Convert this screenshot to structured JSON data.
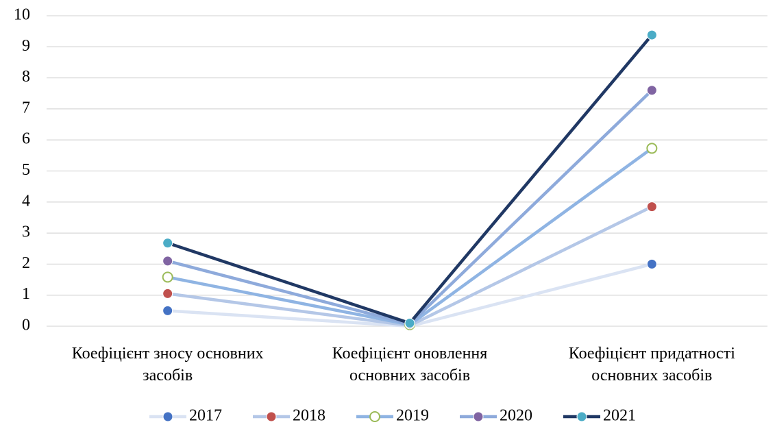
{
  "chart_data": {
    "type": "line",
    "categories": [
      "Коефіцієнт зносу основних засобів",
      "Коефіцієнт оновлення основних засобів",
      "Коефіцієнт придатності основних засобів"
    ],
    "series": [
      {
        "name": "2017",
        "color": "#dae3f3",
        "marker_color": "#4472c4",
        "values": [
          0.5,
          0,
          2.0
        ]
      },
      {
        "name": "2018",
        "color": "#b4c7e7",
        "marker_color": "#c0504d",
        "values": [
          1.05,
          0.02,
          3.85
        ]
      },
      {
        "name": "2019",
        "color": "#8fb4e3",
        "marker_color": "#9bbb59",
        "marker_hollow": true,
        "values": [
          1.58,
          0.05,
          5.73
        ]
      },
      {
        "name": "2020",
        "color": "#8eaadb",
        "marker_color": "#8064a2",
        "values": [
          2.1,
          0.07,
          7.6
        ]
      },
      {
        "name": "2021",
        "color": "#203864",
        "marker_color": "#4bacc6",
        "values": [
          2.68,
          0.1,
          9.38
        ]
      }
    ],
    "ylim": [
      0,
      10
    ],
    "yticks": [
      0,
      1,
      2,
      3,
      4,
      5,
      6,
      7,
      8,
      9,
      10
    ],
    "grid": true,
    "legend": "bottom"
  }
}
